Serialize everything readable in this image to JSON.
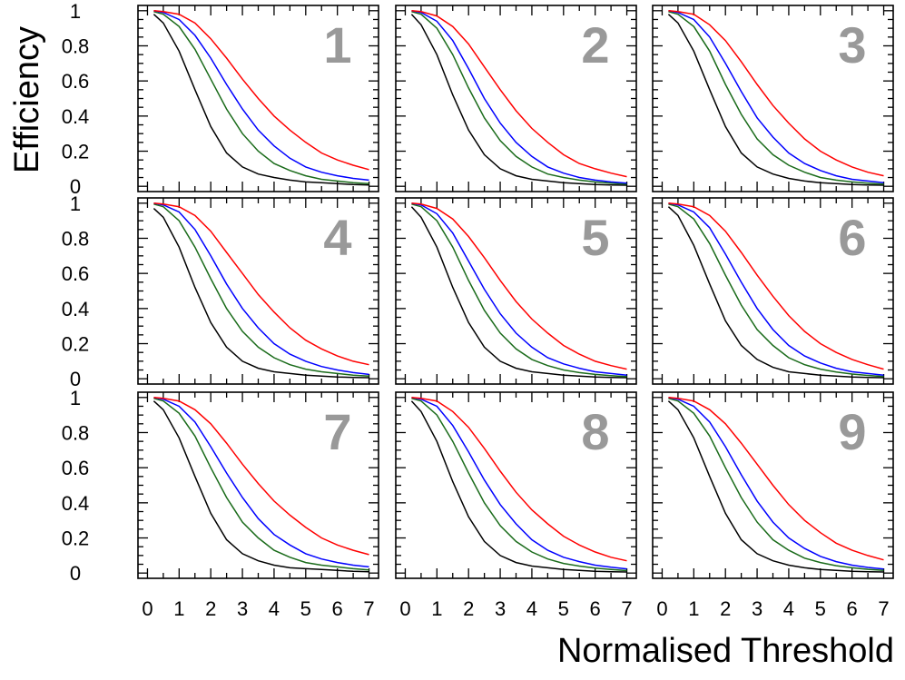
{
  "chart_data": {
    "type": "line",
    "layout": "3x3 grid of panels",
    "xlabel": "Normalised Threshold",
    "ylabel": "Efficiency",
    "xlim": [
      -0.3,
      7.3
    ],
    "ylim": [
      -0.03,
      1.03
    ],
    "xticks": [
      0,
      1,
      2,
      3,
      4,
      5,
      6,
      7
    ],
    "xtick_labels": [
      "0",
      "1",
      "2",
      "3",
      "4",
      "5",
      "6",
      "7"
    ],
    "yticks": [
      0,
      0.2,
      0.4,
      0.6,
      0.8,
      1
    ],
    "ytick_labels": [
      "0",
      "0.2",
      "0.4",
      "0.6",
      "0.8",
      "1"
    ],
    "series_colors": [
      "#000000",
      "#1a6b1a",
      "#0000ff",
      "#ff0000"
    ],
    "x": [
      0.2,
      0.5,
      1,
      1.5,
      2,
      2.5,
      3,
      3.5,
      4,
      4.5,
      5,
      5.5,
      6,
      6.5,
      7
    ],
    "panels": [
      {
        "label": "1",
        "series": [
          {
            "name": "black",
            "values": [
              0.98,
              0.93,
              0.77,
              0.55,
              0.34,
              0.19,
              0.11,
              0.07,
              0.05,
              0.035,
              0.025,
              0.02,
              0.015,
              0.01,
              0.008
            ]
          },
          {
            "name": "green",
            "values": [
              0.995,
              0.98,
              0.91,
              0.78,
              0.61,
              0.44,
              0.3,
              0.2,
              0.13,
              0.09,
              0.06,
              0.04,
              0.03,
              0.02,
              0.015
            ]
          },
          {
            "name": "blue",
            "values": [
              1.0,
              0.99,
              0.95,
              0.86,
              0.73,
              0.58,
              0.44,
              0.32,
              0.23,
              0.16,
              0.11,
              0.08,
              0.06,
              0.045,
              0.035
            ]
          },
          {
            "name": "red",
            "values": [
              1.0,
              0.995,
              0.98,
              0.93,
              0.84,
              0.73,
              0.61,
              0.5,
              0.4,
              0.32,
              0.25,
              0.19,
              0.15,
              0.12,
              0.095
            ]
          }
        ]
      },
      {
        "label": "2",
        "series": [
          {
            "name": "black",
            "values": [
              0.98,
              0.92,
              0.75,
              0.52,
              0.32,
              0.18,
              0.1,
              0.06,
              0.04,
              0.03,
              0.02,
              0.015,
              0.01,
              0.008,
              0.006
            ]
          },
          {
            "name": "green",
            "values": [
              0.995,
              0.98,
              0.9,
              0.75,
              0.56,
              0.39,
              0.26,
              0.17,
              0.11,
              0.07,
              0.05,
              0.035,
              0.025,
              0.018,
              0.012
            ]
          },
          {
            "name": "blue",
            "values": [
              1.0,
              0.99,
              0.94,
              0.83,
              0.67,
              0.5,
              0.36,
              0.25,
              0.17,
              0.11,
              0.075,
              0.05,
              0.035,
              0.025,
              0.018
            ]
          },
          {
            "name": "red",
            "values": [
              1.0,
              0.995,
              0.97,
              0.91,
              0.81,
              0.68,
              0.55,
              0.43,
              0.33,
              0.25,
              0.18,
              0.13,
              0.1,
              0.075,
              0.055
            ]
          }
        ]
      },
      {
        "label": "3",
        "series": [
          {
            "name": "black",
            "values": [
              0.98,
              0.93,
              0.77,
              0.55,
              0.34,
              0.19,
              0.11,
              0.07,
              0.045,
              0.03,
              0.02,
              0.015,
              0.01,
              0.008,
              0.006
            ]
          },
          {
            "name": "green",
            "values": [
              0.995,
              0.98,
              0.91,
              0.77,
              0.58,
              0.41,
              0.27,
              0.18,
              0.12,
              0.08,
              0.05,
              0.035,
              0.025,
              0.018,
              0.012
            ]
          },
          {
            "name": "blue",
            "values": [
              1.0,
              0.99,
              0.95,
              0.85,
              0.7,
              0.54,
              0.39,
              0.28,
              0.19,
              0.13,
              0.09,
              0.06,
              0.04,
              0.03,
              0.02
            ]
          },
          {
            "name": "red",
            "values": [
              1.0,
              0.995,
              0.98,
              0.92,
              0.83,
              0.71,
              0.58,
              0.46,
              0.36,
              0.27,
              0.2,
              0.15,
              0.11,
              0.08,
              0.06
            ]
          }
        ]
      },
      {
        "label": "4",
        "series": [
          {
            "name": "black",
            "values": [
              0.97,
              0.92,
              0.75,
              0.52,
              0.32,
              0.18,
              0.1,
              0.06,
              0.04,
              0.03,
              0.02,
              0.015,
              0.01,
              0.008,
              0.006
            ]
          },
          {
            "name": "green",
            "values": [
              0.995,
              0.98,
              0.9,
              0.75,
              0.57,
              0.4,
              0.27,
              0.18,
              0.12,
              0.08,
              0.055,
              0.04,
              0.03,
              0.02,
              0.015
            ]
          },
          {
            "name": "blue",
            "values": [
              1.0,
              0.99,
              0.95,
              0.85,
              0.7,
              0.54,
              0.4,
              0.29,
              0.2,
              0.14,
              0.1,
              0.07,
              0.05,
              0.035,
              0.025
            ]
          },
          {
            "name": "red",
            "values": [
              1.0,
              0.995,
              0.98,
              0.93,
              0.84,
              0.72,
              0.6,
              0.48,
              0.38,
              0.29,
              0.22,
              0.17,
              0.13,
              0.1,
              0.08
            ]
          }
        ]
      },
      {
        "label": "5",
        "series": [
          {
            "name": "black",
            "values": [
              0.98,
              0.92,
              0.75,
              0.52,
              0.32,
              0.18,
              0.1,
              0.06,
              0.04,
              0.03,
              0.02,
              0.015,
              0.01,
              0.008,
              0.006
            ]
          },
          {
            "name": "green",
            "values": [
              0.995,
              0.98,
              0.9,
              0.75,
              0.56,
              0.39,
              0.26,
              0.17,
              0.11,
              0.075,
              0.05,
              0.035,
              0.025,
              0.018,
              0.012
            ]
          },
          {
            "name": "blue",
            "values": [
              1.0,
              0.99,
              0.94,
              0.83,
              0.67,
              0.51,
              0.37,
              0.26,
              0.18,
              0.12,
              0.085,
              0.06,
              0.04,
              0.03,
              0.02
            ]
          },
          {
            "name": "red",
            "values": [
              1.0,
              0.995,
              0.97,
              0.91,
              0.81,
              0.69,
              0.56,
              0.44,
              0.34,
              0.26,
              0.19,
              0.14,
              0.1,
              0.075,
              0.055
            ]
          }
        ]
      },
      {
        "label": "6",
        "series": [
          {
            "name": "black",
            "values": [
              0.98,
              0.93,
              0.76,
              0.54,
              0.33,
              0.19,
              0.11,
              0.065,
              0.04,
              0.03,
              0.02,
              0.015,
              0.01,
              0.008,
              0.006
            ]
          },
          {
            "name": "green",
            "values": [
              0.995,
              0.98,
              0.91,
              0.77,
              0.59,
              0.42,
              0.28,
              0.19,
              0.12,
              0.08,
              0.055,
              0.038,
              0.027,
              0.019,
              0.013
            ]
          },
          {
            "name": "blue",
            "values": [
              1.0,
              0.99,
              0.95,
              0.86,
              0.71,
              0.55,
              0.4,
              0.28,
              0.19,
              0.13,
              0.09,
              0.06,
              0.04,
              0.03,
              0.02
            ]
          },
          {
            "name": "red",
            "values": [
              1.0,
              0.995,
              0.98,
              0.93,
              0.84,
              0.72,
              0.59,
              0.47,
              0.36,
              0.27,
              0.2,
              0.15,
              0.11,
              0.08,
              0.055
            ]
          }
        ]
      },
      {
        "label": "7",
        "series": [
          {
            "name": "black",
            "values": [
              0.98,
              0.93,
              0.77,
              0.55,
              0.34,
              0.19,
              0.11,
              0.07,
              0.045,
              0.03,
              0.025,
              0.02,
              0.015,
              0.01,
              0.008
            ]
          },
          {
            "name": "green",
            "values": [
              0.995,
              0.98,
              0.91,
              0.78,
              0.6,
              0.43,
              0.29,
              0.2,
              0.13,
              0.09,
              0.06,
              0.045,
              0.035,
              0.025,
              0.018
            ]
          },
          {
            "name": "blue",
            "values": [
              1.0,
              0.99,
              0.95,
              0.86,
              0.72,
              0.57,
              0.43,
              0.31,
              0.22,
              0.16,
              0.11,
              0.08,
              0.06,
              0.045,
              0.035
            ]
          },
          {
            "name": "red",
            "values": [
              1.0,
              0.995,
              0.98,
              0.93,
              0.85,
              0.74,
              0.62,
              0.51,
              0.41,
              0.33,
              0.26,
              0.2,
              0.16,
              0.13,
              0.105
            ]
          }
        ]
      },
      {
        "label": "8",
        "series": [
          {
            "name": "black",
            "values": [
              0.98,
              0.92,
              0.75,
              0.52,
              0.32,
              0.18,
              0.1,
              0.06,
              0.04,
              0.03,
              0.02,
              0.015,
              0.01,
              0.008,
              0.006
            ]
          },
          {
            "name": "green",
            "values": [
              0.995,
              0.98,
              0.9,
              0.75,
              0.57,
              0.4,
              0.27,
              0.18,
              0.12,
              0.08,
              0.055,
              0.04,
              0.028,
              0.02,
              0.014
            ]
          },
          {
            "name": "blue",
            "values": [
              1.0,
              0.99,
              0.95,
              0.84,
              0.69,
              0.53,
              0.39,
              0.28,
              0.19,
              0.13,
              0.09,
              0.065,
              0.045,
              0.033,
              0.024
            ]
          },
          {
            "name": "red",
            "values": [
              1.0,
              0.995,
              0.98,
              0.92,
              0.83,
              0.71,
              0.58,
              0.46,
              0.36,
              0.28,
              0.21,
              0.16,
              0.12,
              0.09,
              0.07
            ]
          }
        ]
      },
      {
        "label": "9",
        "series": [
          {
            "name": "black",
            "values": [
              0.98,
              0.93,
              0.77,
              0.55,
              0.34,
              0.19,
              0.11,
              0.07,
              0.045,
              0.03,
              0.02,
              0.015,
              0.01,
              0.008,
              0.006
            ]
          },
          {
            "name": "green",
            "values": [
              0.995,
              0.98,
              0.91,
              0.78,
              0.6,
              0.43,
              0.29,
              0.19,
              0.13,
              0.085,
              0.06,
              0.042,
              0.03,
              0.021,
              0.015
            ]
          },
          {
            "name": "blue",
            "values": [
              1.0,
              0.99,
              0.95,
              0.86,
              0.72,
              0.56,
              0.41,
              0.29,
              0.2,
              0.14,
              0.095,
              0.065,
              0.045,
              0.032,
              0.023
            ]
          },
          {
            "name": "red",
            "values": [
              1.0,
              0.995,
              0.98,
              0.93,
              0.85,
              0.74,
              0.62,
              0.5,
              0.39,
              0.3,
              0.23,
              0.17,
              0.13,
              0.1,
              0.075
            ]
          }
        ]
      }
    ]
  }
}
